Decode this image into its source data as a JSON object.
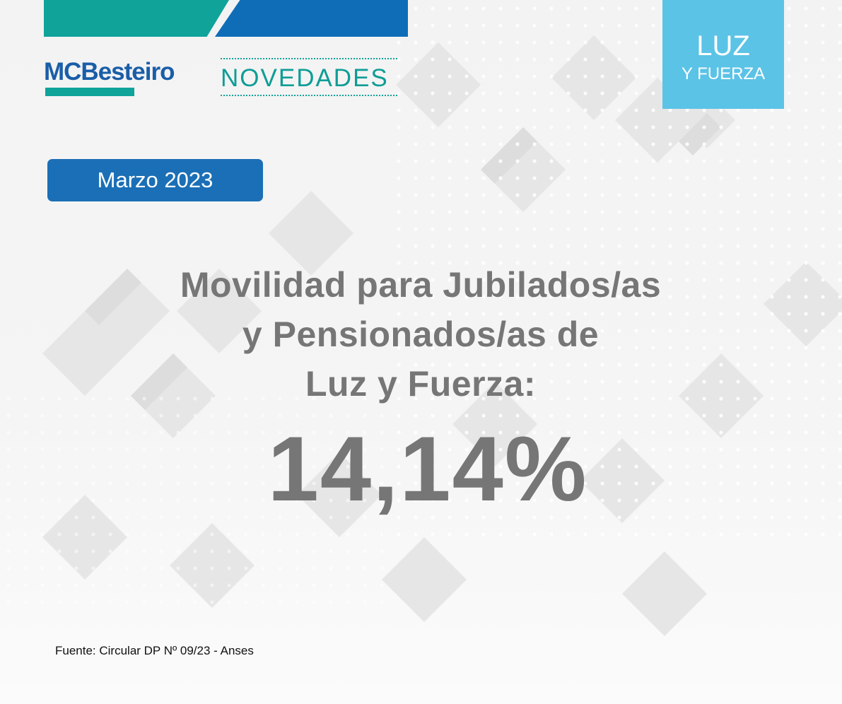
{
  "header": {
    "logo_text": "MCBesteiro",
    "section_title": "NOVEDADES",
    "corner_badge": {
      "line1": "LUZ",
      "line2": "Y FUERZA"
    }
  },
  "date_badge": "Marzo 2023",
  "headline": {
    "line1": "Movilidad para Jubilados/as",
    "line2": "y Pensionados/as de",
    "line3": "Luz y Fuerza:"
  },
  "value": "14,14%",
  "source": "Fuente: Circular DP Nº 09/23 - Anses",
  "colors": {
    "teal": "#0fa39a",
    "blue": "#0f6db8",
    "light_blue": "#5bc3e6",
    "badge_blue": "#1b6fb6",
    "text_gray": "#767676"
  },
  "icons": {
    "background": "diamond-dot-pattern"
  }
}
